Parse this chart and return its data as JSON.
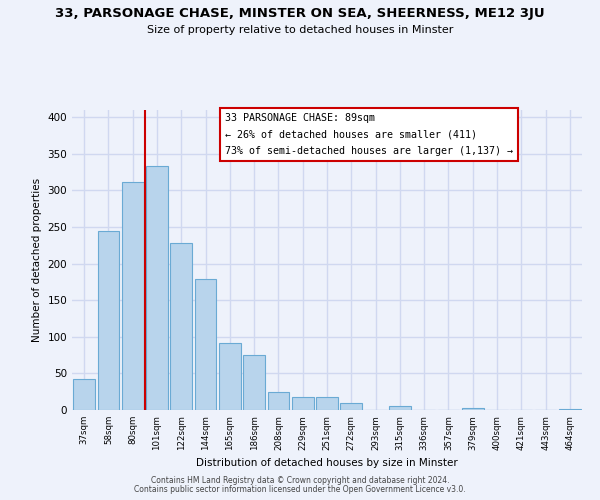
{
  "title": "33, PARSONAGE CHASE, MINSTER ON SEA, SHEERNESS, ME12 3JU",
  "subtitle": "Size of property relative to detached houses in Minster",
  "xlabel": "Distribution of detached houses by size in Minster",
  "ylabel": "Number of detached properties",
  "bar_labels": [
    "37sqm",
    "58sqm",
    "80sqm",
    "101sqm",
    "122sqm",
    "144sqm",
    "165sqm",
    "186sqm",
    "208sqm",
    "229sqm",
    "251sqm",
    "272sqm",
    "293sqm",
    "315sqm",
    "336sqm",
    "357sqm",
    "379sqm",
    "400sqm",
    "421sqm",
    "443sqm",
    "464sqm"
  ],
  "bar_values": [
    43,
    245,
    312,
    333,
    228,
    179,
    91,
    75,
    25,
    18,
    18,
    9,
    0,
    5,
    0,
    0,
    3,
    0,
    0,
    0,
    2
  ],
  "bar_color": "#b8d4ec",
  "bar_edge_color": "#6aaad4",
  "vline_x_index": 2.5,
  "vline_color": "#cc0000",
  "annotation_title": "33 PARSONAGE CHASE: 89sqm",
  "annotation_line1": "← 26% of detached houses are smaller (411)",
  "annotation_line2": "73% of semi-detached houses are larger (1,137) →",
  "annotation_box_color": "white",
  "annotation_box_edge": "#cc0000",
  "ylim": [
    0,
    410
  ],
  "yticks": [
    0,
    50,
    100,
    150,
    200,
    250,
    300,
    350,
    400
  ],
  "footer1": "Contains HM Land Registry data © Crown copyright and database right 2024.",
  "footer2": "Contains public sector information licensed under the Open Government Licence v3.0.",
  "bg_color": "#eef2fb",
  "grid_color": "#d0d8f0"
}
